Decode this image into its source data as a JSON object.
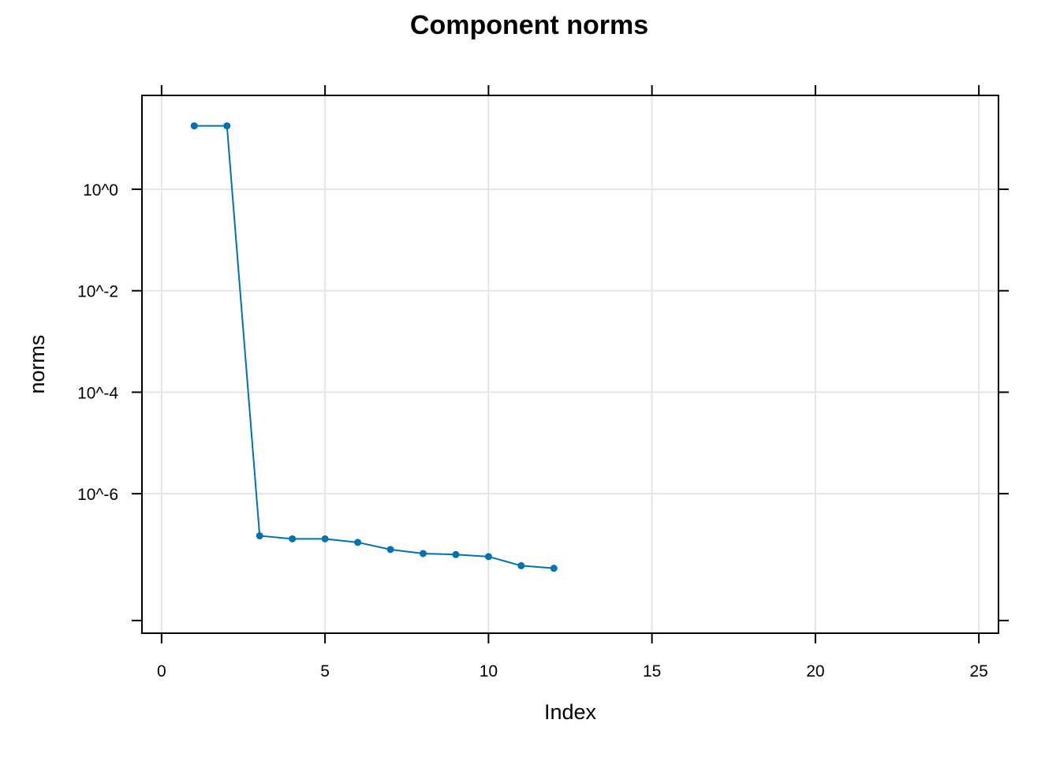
{
  "chart_data": {
    "type": "line",
    "title": "Component norms",
    "xlabel": "Index",
    "ylabel": "norms",
    "xlim": [
      -0.6,
      25.6
    ],
    "ylim": [
      -8.75,
      1.85
    ],
    "y_scale": "log10",
    "x_ticks": [
      0,
      5,
      10,
      15,
      20,
      25
    ],
    "x_tick_labels": [
      "0",
      "5",
      "10",
      "15",
      "20",
      "25"
    ],
    "y_ticks": [
      0,
      -2,
      -4,
      -6
    ],
    "y_tick_labels": [
      "10^0",
      "10^-2",
      "10^-4",
      "10^-6"
    ],
    "grid": true,
    "series": [
      {
        "color": "#0072B2",
        "x": [
          1,
          2,
          3,
          4,
          5,
          6,
          7,
          8,
          9,
          10,
          11,
          12
        ],
        "y": [
          1.25,
          1.25,
          -6.83,
          -6.89,
          -6.89,
          -6.96,
          -7.1,
          -7.18,
          -7.2,
          -7.24,
          -7.42,
          -7.47
        ]
      }
    ]
  }
}
